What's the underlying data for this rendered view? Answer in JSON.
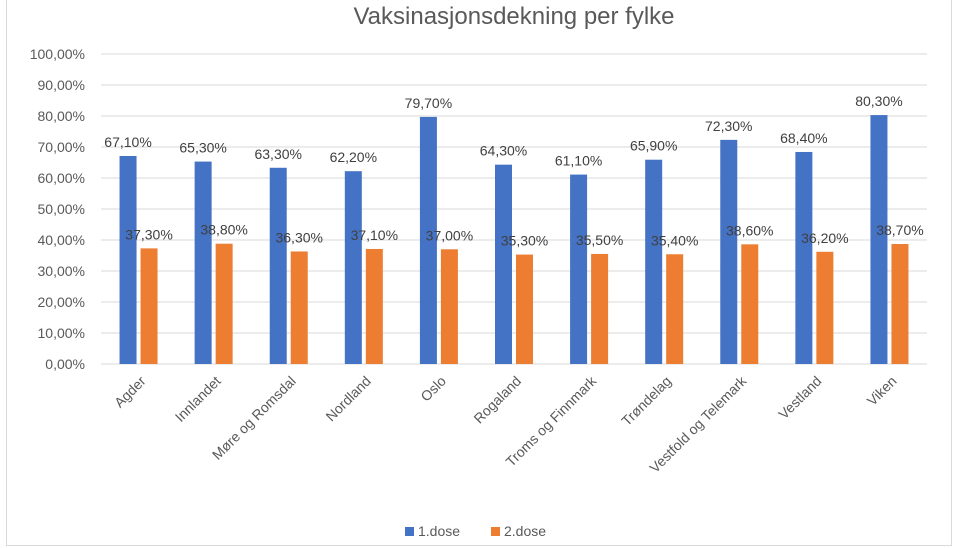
{
  "chart_data": {
    "type": "bar",
    "title": "Vaksinasjonsdekning per fylke",
    "xlabel": "",
    "ylabel": "",
    "ylim": [
      0,
      100
    ],
    "y_ticks": [
      "0,00%",
      "10,00%",
      "20,00%",
      "30,00%",
      "40,00%",
      "50,00%",
      "60,00%",
      "70,00%",
      "80,00%",
      "90,00%",
      "100,00%"
    ],
    "categories": [
      "Agder",
      "Innlandet",
      "Møre og Romsdal",
      "Nordland",
      "Oslo",
      "Rogaland",
      "Troms og Finnmark",
      "Trøndelag",
      "Vestfold og Telemark",
      "Vestland",
      "Viken"
    ],
    "series": [
      {
        "name": "1.dose",
        "color": "#4472c4",
        "values": [
          67.1,
          65.3,
          63.3,
          62.2,
          79.7,
          64.3,
          61.1,
          65.9,
          72.3,
          68.4,
          80.3
        ],
        "labels": [
          "67,10%",
          "65,30%",
          "63,30%",
          "62,20%",
          "79,70%",
          "64,30%",
          "61,10%",
          "65,90%",
          "72,30%",
          "68,40%",
          "80,30%"
        ]
      },
      {
        "name": "2.dose",
        "color": "#ed7d31",
        "values": [
          37.3,
          38.8,
          36.3,
          37.1,
          37.0,
          35.3,
          35.5,
          35.4,
          38.6,
          36.2,
          38.7
        ],
        "labels": [
          "37,30%",
          "38,80%",
          "36,30%",
          "37,10%",
          "37,00%",
          "35,30%",
          "35,50%",
          "35,40%",
          "38,60%",
          "36,20%",
          "38,70%"
        ]
      }
    ],
    "grid": true,
    "legend": "bottom"
  }
}
